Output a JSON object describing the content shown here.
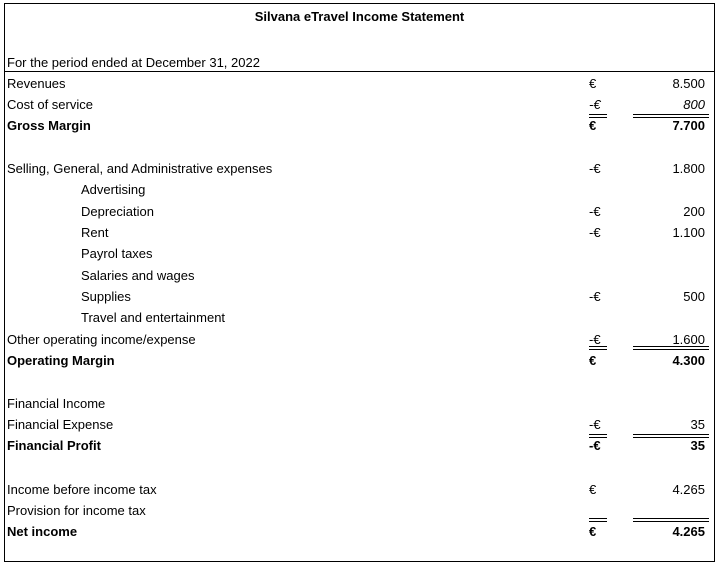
{
  "title": "Silvana eTravel Income Statement",
  "period": "For the period ended at December 31, 2022",
  "rows": [
    {
      "label": "Revenues",
      "currency": "€",
      "amount": "8.500"
    },
    {
      "label": "Cost of service",
      "currency": "-€",
      "amount": "800"
    },
    {
      "label": "Gross Margin",
      "currency": "€",
      "amount": "7.700"
    },
    {
      "label": "Selling, General, and Administrative expenses",
      "currency": "-€",
      "amount": "1.800"
    },
    {
      "label": "Advertising",
      "currency": "",
      "amount": ""
    },
    {
      "label": "Depreciation",
      "currency": "-€",
      "amount": "200"
    },
    {
      "label": "Rent",
      "currency": "-€",
      "amount": "1.100"
    },
    {
      "label": "Payrol taxes",
      "currency": "",
      "amount": ""
    },
    {
      "label": "Salaries and wages",
      "currency": "",
      "amount": ""
    },
    {
      "label": "Supplies",
      "currency": "-€",
      "amount": "500"
    },
    {
      "label": "Travel and entertainment",
      "currency": "",
      "amount": ""
    },
    {
      "label": "Other  operating income/expense",
      "currency": "-€",
      "amount": "1.600"
    },
    {
      "label": "Operating Margin",
      "currency": "€",
      "amount": "4.300"
    },
    {
      "label": "Financial Income",
      "currency": "",
      "amount": ""
    },
    {
      "label": "Financial Expense",
      "currency": "-€",
      "amount": "35"
    },
    {
      "label": "Financial Profit",
      "currency": "-€",
      "amount": "35"
    },
    {
      "label": "Income before income tax",
      "currency": "€",
      "amount": "4.265"
    },
    {
      "label": "Provision for income tax",
      "currency": "",
      "amount": ""
    },
    {
      "label": "Net income",
      "currency": "€",
      "amount": "4.265"
    }
  ]
}
